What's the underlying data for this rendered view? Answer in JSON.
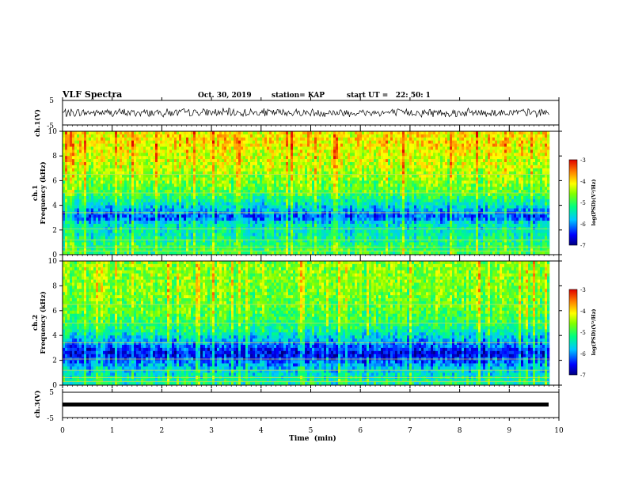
{
  "header": {
    "title": "VLF Spectra",
    "date": "Oct. 30, 2019",
    "station": "station= KAP",
    "start_ut": "start UT =   22: 50: 1"
  },
  "chart_data": [
    {
      "name": "ch1-waveform",
      "type": "line",
      "ylabel": "ch.1(V)",
      "ylim": [
        -5,
        5
      ],
      "y_ticks": [
        "5",
        "-5"
      ],
      "xlim": [
        0,
        10
      ],
      "data_extent": [
        0,
        9.8
      ],
      "amplitude_range": [
        -2,
        2
      ],
      "color": "#000000"
    },
    {
      "name": "ch1-spectrogram",
      "type": "heatmap",
      "ylabel": "ch.1\nFrequency  (kHz)",
      "ylim": [
        0,
        10
      ],
      "y_ticks": [
        "0",
        "2",
        "4",
        "6",
        "8",
        "10"
      ],
      "xlim": [
        0,
        10
      ],
      "data_extent": [
        0,
        9.8
      ],
      "colorbar": {
        "label": "log(PSD)(V²/Hz)",
        "range": [
          -7,
          -3
        ],
        "ticks": [
          "-3",
          "-4",
          "-5",
          "-6",
          "-7"
        ]
      },
      "typical_log_psd_by_freq_khz": [
        [
          0.5,
          -5.0
        ],
        [
          1.5,
          -5.4
        ],
        [
          2.5,
          -5.5
        ],
        [
          3.0,
          -6.3
        ],
        [
          4.0,
          -5.6
        ],
        [
          5.0,
          -4.9
        ],
        [
          7.0,
          -4.4
        ],
        [
          9.0,
          -4.1
        ]
      ]
    },
    {
      "name": "ch2-spectrogram",
      "type": "heatmap",
      "ylabel": "ch.2\nFrequency  (kHz)",
      "ylim": [
        0,
        10
      ],
      "y_ticks": [
        "0",
        "2",
        "4",
        "6",
        "8",
        "10"
      ],
      "xlim": [
        0,
        10
      ],
      "data_extent": [
        0,
        9.8
      ],
      "colorbar": {
        "label": "log(PSD)(V²/Hz)",
        "range": [
          -7,
          -3
        ],
        "ticks": [
          "-3",
          "-4",
          "-5",
          "-6",
          "-7"
        ]
      },
      "typical_log_psd_by_freq_khz": [
        [
          0.5,
          -5.3
        ],
        [
          1.5,
          -5.8
        ],
        [
          2.5,
          -6.6
        ],
        [
          3.5,
          -5.9
        ],
        [
          4.5,
          -5.2
        ],
        [
          6.0,
          -4.8
        ],
        [
          8.0,
          -4.6
        ]
      ]
    },
    {
      "name": "ch3-waveform",
      "type": "line",
      "ylabel": "ch.3(V)",
      "ylim": [
        -5,
        5
      ],
      "y_ticks": [
        "5",
        "-5"
      ],
      "xlim": [
        0,
        10
      ],
      "data_extent": [
        0,
        9.8
      ],
      "constant_value": 0,
      "color": "#000000"
    }
  ],
  "x_axis": {
    "label": "Time  (min)",
    "ticks": [
      "0",
      "1",
      "2",
      "3",
      "4",
      "5",
      "6",
      "7",
      "8",
      "9",
      "10"
    ]
  },
  "colors": {
    "colormap": [
      "#000080",
      "#0000ff",
      "#00c8ff",
      "#00ff80",
      "#80ff00",
      "#ffff00",
      "#ff8000",
      "#e00000"
    ]
  }
}
